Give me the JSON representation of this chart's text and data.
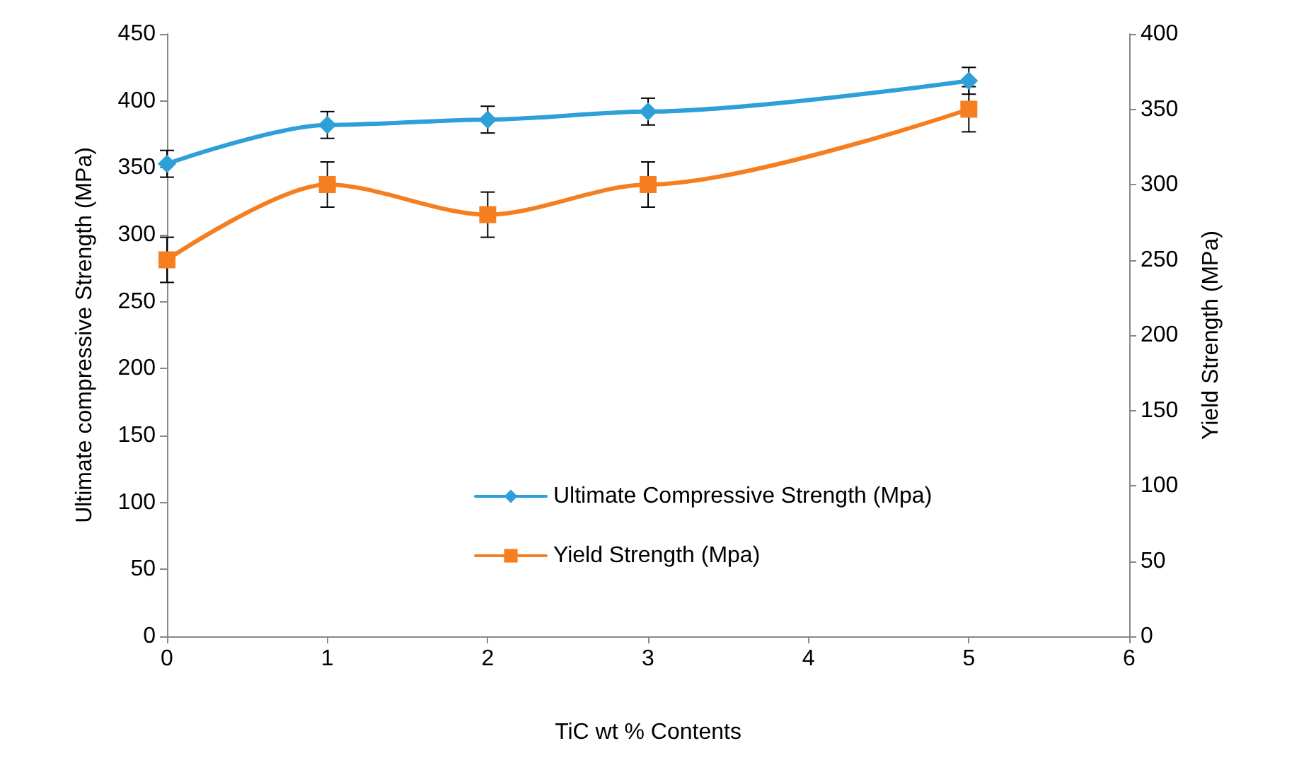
{
  "chart_data": {
    "type": "line",
    "xlabel": "TiC wt % Contents",
    "ylabel": "Ultimate compressive Strength (MPa)",
    "y2label": "Yield Strength (MPa)",
    "x": [
      0,
      1,
      2,
      3,
      5
    ],
    "xlim": [
      0,
      6
    ],
    "xticks": [
      0,
      1,
      2,
      3,
      4,
      5,
      6
    ],
    "ylim": [
      0,
      450
    ],
    "yticks": [
      0,
      50,
      100,
      150,
      200,
      250,
      300,
      350,
      400,
      450
    ],
    "y2lim": [
      0,
      400
    ],
    "y2ticks": [
      0,
      50,
      100,
      150,
      200,
      250,
      300,
      350,
      400
    ],
    "grid": false,
    "legend": "bottom",
    "series": [
      {
        "name": "Ultimate Compressive Strength (Mpa)",
        "color": "#2e9fd8",
        "marker": "diamond",
        "values": [
          353,
          382,
          386,
          392,
          415
        ],
        "errors": [
          10,
          10,
          10,
          10,
          10
        ]
      },
      {
        "name": "Yield Strength (Mpa)",
        "color": "#f57f20",
        "marker": "square",
        "axis": "y2",
        "values": [
          250,
          300,
          280,
          300,
          350
        ],
        "errors": [
          15,
          15,
          15,
          15,
          15
        ]
      }
    ]
  }
}
